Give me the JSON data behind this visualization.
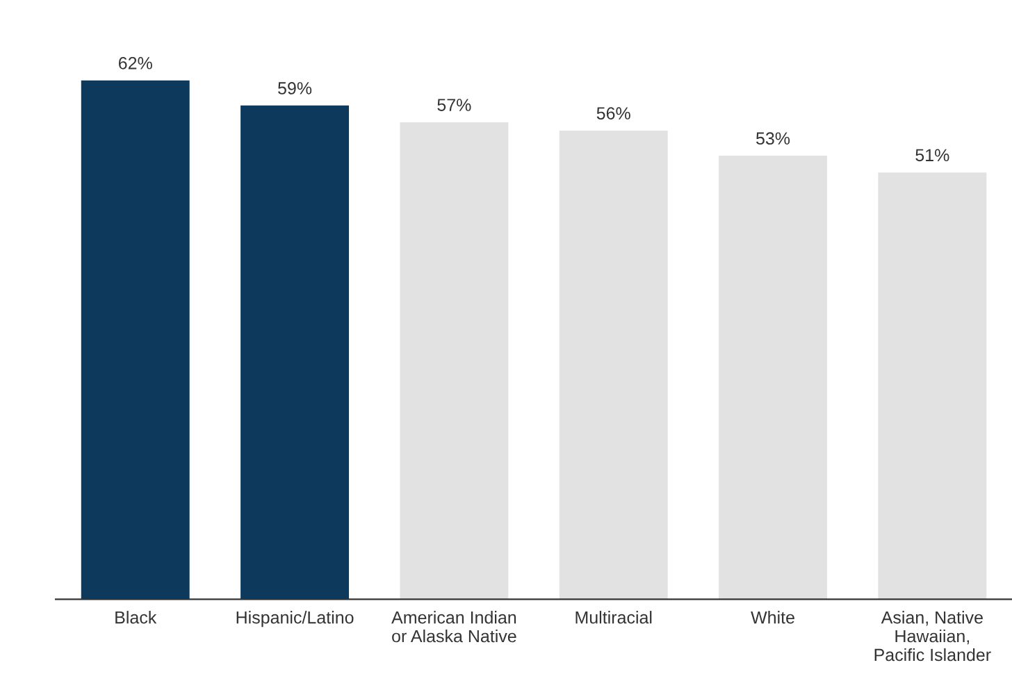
{
  "chart_data": {
    "type": "bar",
    "categories": [
      "Black",
      "Hispanic/Latino",
      "American Indian\nor Alaska Native",
      "Multiracial",
      "White",
      "Asian, Native\nHawaiian,\nPacific Islander"
    ],
    "values": [
      62,
      59,
      57,
      56,
      53,
      51
    ],
    "colors": [
      "#0d3a5c",
      "#0d3a5c",
      "#e2e2e2",
      "#e2e2e2",
      "#e2e2e2",
      "#e2e2e2"
    ],
    "value_labels": [
      "62%",
      "59%",
      "57%",
      "56%",
      "53%",
      "51%"
    ],
    "grid": false
  }
}
